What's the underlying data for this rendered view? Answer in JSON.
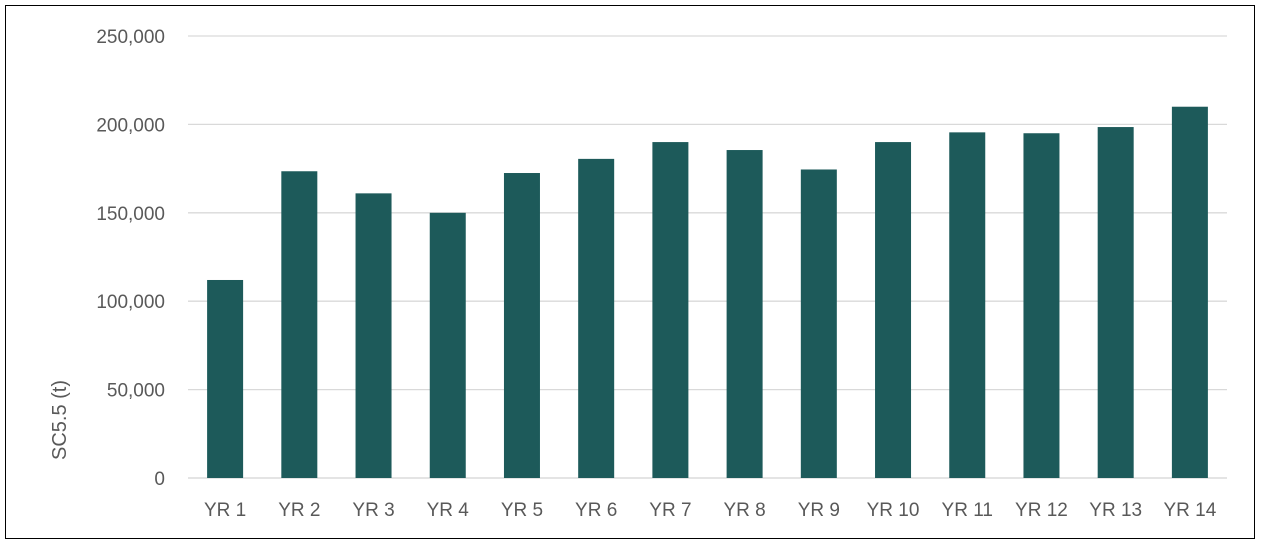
{
  "chart_data": {
    "type": "bar",
    "title": "",
    "xlabel": "",
    "ylabel": "SC5.5 (t)",
    "categories": [
      "YR 1",
      "YR 2",
      "YR 3",
      "YR 4",
      "YR 5",
      "YR 6",
      "YR 7",
      "YR 8",
      "YR 9",
      "YR 10",
      "YR 11",
      "YR 12",
      "YR 13",
      "YR 14"
    ],
    "series": [
      {
        "values": [
          112000,
          173500,
          161000,
          150000,
          172500,
          180500,
          190000,
          185500,
          174500,
          190000,
          195500,
          195000,
          198500,
          210000
        ]
      }
    ],
    "ylim": [
      0,
      250000
    ],
    "yticks": [
      0,
      50000,
      100000,
      150000,
      200000,
      250000
    ],
    "ytick_labels": [
      "0",
      "50,000",
      "100,000",
      "150,000",
      "200,000",
      "250,000"
    ],
    "grid": true,
    "legend": "none",
    "colors": {
      "bar": "#1d5a5a",
      "grid": "#d9d9d9",
      "text": "#595959"
    }
  }
}
